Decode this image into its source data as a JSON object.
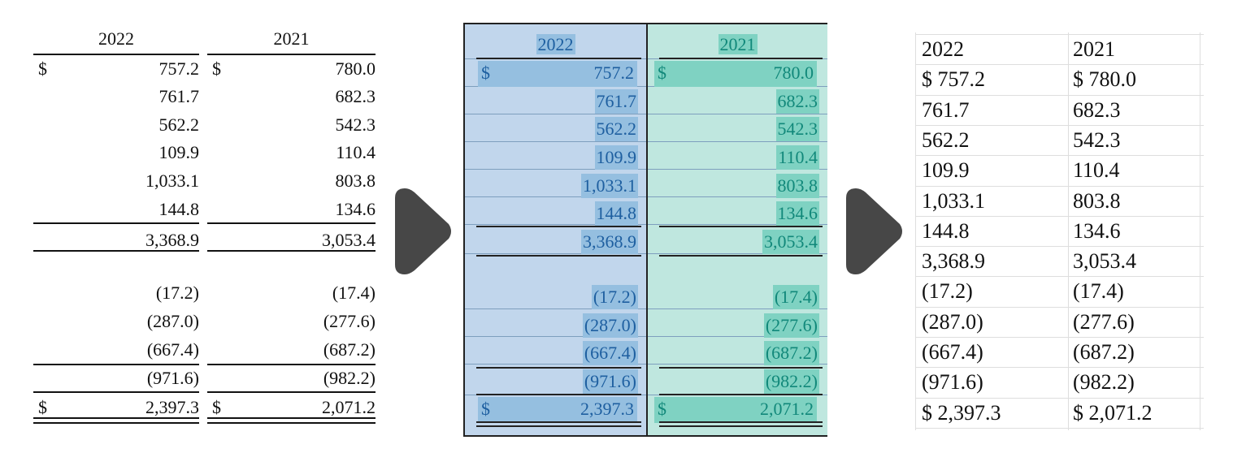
{
  "colors": {
    "arrow": "#474747",
    "detected_2022_bg": "#c1d6ec",
    "detected_2022_highlight": "#95bfe0",
    "detected_2022_text": "#1e5fa0",
    "detected_2021_bg": "#bfe7df",
    "detected_2021_highlight": "#7fd2c2",
    "detected_2021_text": "#11887a"
  },
  "icons": [
    "arrow-right-icon",
    "arrow-right-icon"
  ],
  "original": {
    "columns": [
      {
        "header": "2022",
        "rows": [
          {
            "cur": "$",
            "val": "757.2"
          },
          {
            "cur": "",
            "val": "761.7"
          },
          {
            "cur": "",
            "val": "562.2"
          },
          {
            "cur": "",
            "val": "109.9"
          },
          {
            "cur": "",
            "val": "1,033.1"
          },
          {
            "cur": "",
            "val": "144.8"
          },
          {
            "cur": "",
            "val": "3,368.9"
          },
          {
            "cur": "",
            "val": "(17.2)"
          },
          {
            "cur": "",
            "val": "(287.0)"
          },
          {
            "cur": "",
            "val": "(667.4)"
          },
          {
            "cur": "",
            "val": "(971.6)"
          },
          {
            "cur": "$",
            "val": "2,397.3"
          }
        ]
      },
      {
        "header": "2021",
        "rows": [
          {
            "cur": "$",
            "val": "780.0"
          },
          {
            "cur": "",
            "val": "682.3"
          },
          {
            "cur": "",
            "val": "542.3"
          },
          {
            "cur": "",
            "val": "110.4"
          },
          {
            "cur": "",
            "val": "803.8"
          },
          {
            "cur": "",
            "val": "134.6"
          },
          {
            "cur": "",
            "val": "3,053.4"
          },
          {
            "cur": "",
            "val": "(17.4)"
          },
          {
            "cur": "",
            "val": "(277.6)"
          },
          {
            "cur": "",
            "val": "(687.2)"
          },
          {
            "cur": "",
            "val": "(982.2)"
          },
          {
            "cur": "$",
            "val": "2,071.2"
          }
        ]
      }
    ]
  },
  "extracted": {
    "headers": [
      "2022",
      "2021"
    ],
    "rows": [
      [
        "$ 757.2",
        "$ 780.0"
      ],
      [
        "761.7",
        "682.3"
      ],
      [
        "562.2",
        "542.3"
      ],
      [
        "109.9",
        "110.4"
      ],
      [
        "1,033.1",
        "803.8"
      ],
      [
        "144.8",
        "134.6"
      ],
      [
        "3,368.9",
        "3,053.4"
      ],
      [
        "(17.2)",
        "(17.4)"
      ],
      [
        "(287.0)",
        "(277.6)"
      ],
      [
        "(667.4)",
        "(687.2)"
      ],
      [
        "(971.6)",
        "(982.2)"
      ],
      [
        "$ 2,397.3",
        "$ 2,071.2"
      ]
    ]
  }
}
